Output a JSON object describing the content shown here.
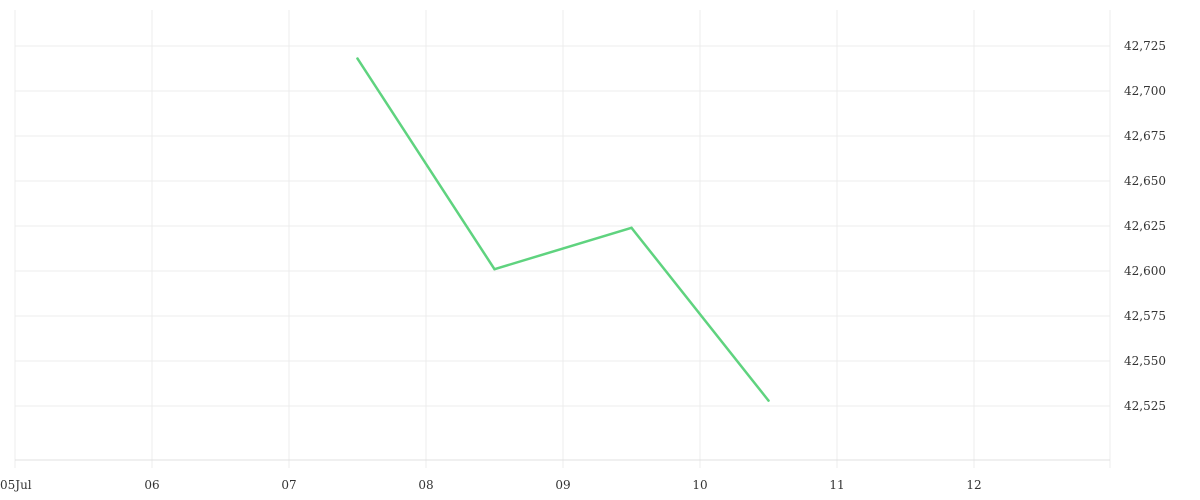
{
  "chart_data": {
    "type": "line",
    "title": "",
    "xlabel": "",
    "ylabel": "",
    "x_tick_labels": [
      "05Jul",
      "06",
      "07",
      "08",
      "09",
      "10",
      "11",
      "12"
    ],
    "y_tick_labels": [
      "42,725",
      "42,700",
      "42,675",
      "42,650",
      "42,625",
      "42,600",
      "42,575",
      "42,550",
      "42,525"
    ],
    "y_ticks": [
      42725,
      42700,
      42675,
      42650,
      42625,
      42600,
      42575,
      42550,
      42525
    ],
    "xlim": [
      "2024-07-05",
      "2024-07-13"
    ],
    "ylim": [
      42495,
      42745
    ],
    "grid": true,
    "legend": "none",
    "y_axis_position": "right",
    "series": [
      {
        "color": "#5fd37f",
        "points": [
          {
            "x": "2024-07-07T12:00",
            "y": 42718
          },
          {
            "x": "2024-07-08T12:00",
            "y": 42601
          },
          {
            "x": "2024-07-09T12:00",
            "y": 42624
          },
          {
            "x": "2024-07-10T12:00",
            "y": 42528
          }
        ]
      }
    ]
  }
}
